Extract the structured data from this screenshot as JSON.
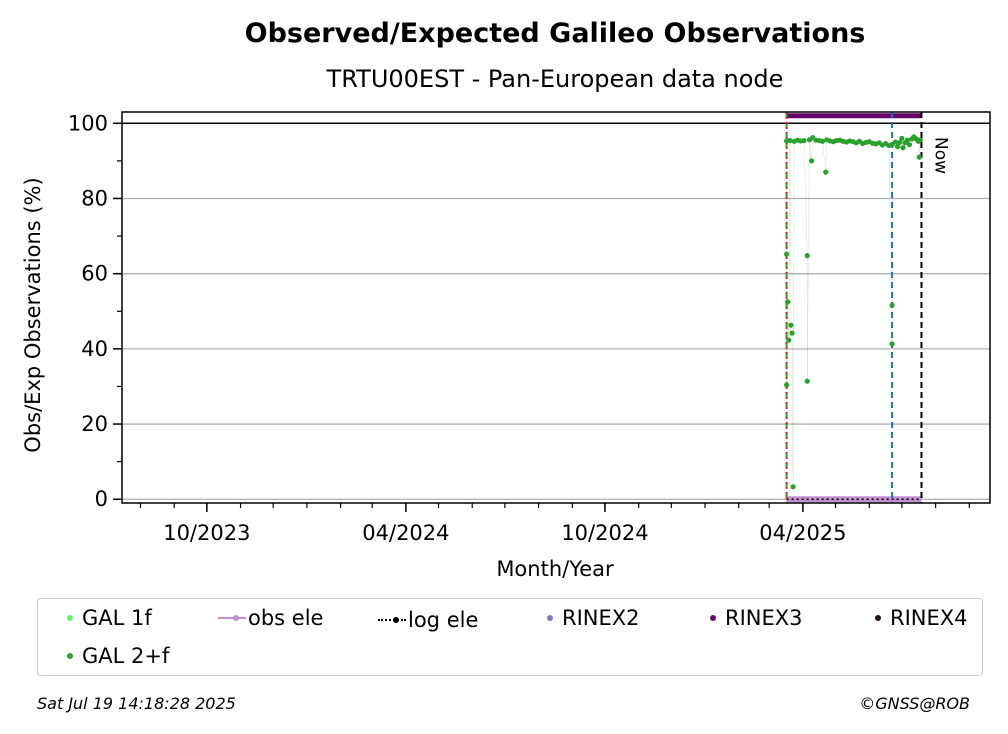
{
  "chart_data": {
    "type": "scatter",
    "title": "Observed/Expected Galileo Observations",
    "subtitle": "TRTU00EST - Pan-European data node",
    "xlabel": "Month/Year",
    "ylabel": "Obs/Exp Observations (%)",
    "xlim": [
      "2023-07-15",
      "2025-09-20"
    ],
    "ylim": [
      -1,
      103
    ],
    "x_tick_labels": [
      "10/2023",
      "04/2024",
      "10/2024",
      "04/2025"
    ],
    "x_ticks": [
      "2023-10-01",
      "2024-04-01",
      "2024-10-01",
      "2025-04-01"
    ],
    "y_ticks": [
      0,
      20,
      40,
      60,
      80,
      100
    ],
    "grid": "horizontal",
    "legend_position": "bottom",
    "reference_line_y": 100,
    "vlines": [
      {
        "x": "2025-03-17",
        "color": "#2ca02c",
        "style": "dashed"
      },
      {
        "x": "2025-03-17",
        "color": "#d62728",
        "style": "dotted"
      },
      {
        "x": "2025-06-22",
        "color": "#1f6fc1",
        "style": "dashed"
      },
      {
        "x": "2025-07-19",
        "color": "#000000",
        "style": "dashed",
        "label": "Now"
      }
    ],
    "series": [
      {
        "name": "GAL 2+f",
        "color": "#2ca02c",
        "points": [
          [
            "2025-03-17",
            95.3
          ],
          [
            "2025-03-17",
            65.2
          ],
          [
            "2025-03-17",
            30.4
          ],
          [
            "2025-03-18",
            52.5
          ],
          [
            "2025-03-19",
            42.3
          ],
          [
            "2025-03-20",
            95.4
          ],
          [
            "2025-03-21",
            46.3
          ],
          [
            "2025-03-22",
            44.2
          ],
          [
            "2025-03-23",
            3.3
          ],
          [
            "2025-03-24",
            95.2
          ],
          [
            "2025-03-27",
            95.5
          ],
          [
            "2025-03-30",
            95.3
          ],
          [
            "2025-04-02",
            95.4
          ],
          [
            "2025-04-05",
            64.8
          ],
          [
            "2025-04-05",
            31.4
          ],
          [
            "2025-04-07",
            95.6
          ],
          [
            "2025-04-09",
            90.0
          ],
          [
            "2025-04-10",
            96.2
          ],
          [
            "2025-04-13",
            95.5
          ],
          [
            "2025-04-16",
            95.4
          ],
          [
            "2025-04-19",
            95.2
          ],
          [
            "2025-04-22",
            87.0
          ],
          [
            "2025-04-23",
            95.6
          ],
          [
            "2025-04-26",
            95.3
          ],
          [
            "2025-04-29",
            95.1
          ],
          [
            "2025-05-02",
            95.4
          ],
          [
            "2025-05-05",
            95.5
          ],
          [
            "2025-05-08",
            95.2
          ],
          [
            "2025-05-11",
            95.0
          ],
          [
            "2025-05-14",
            95.3
          ],
          [
            "2025-05-17",
            95.1
          ],
          [
            "2025-05-20",
            94.8
          ],
          [
            "2025-05-23",
            95.2
          ],
          [
            "2025-05-26",
            94.6
          ],
          [
            "2025-05-29",
            94.9
          ],
          [
            "2025-06-01",
            95.1
          ],
          [
            "2025-06-04",
            94.7
          ],
          [
            "2025-06-07",
            94.5
          ],
          [
            "2025-06-10",
            94.8
          ],
          [
            "2025-06-13",
            94.2
          ],
          [
            "2025-06-16",
            94.6
          ],
          [
            "2025-06-19",
            94.1
          ],
          [
            "2025-06-22",
            51.6
          ],
          [
            "2025-06-22",
            41.3
          ],
          [
            "2025-06-22",
            94.3
          ],
          [
            "2025-06-25",
            95.0
          ],
          [
            "2025-06-27",
            93.8
          ],
          [
            "2025-06-29",
            94.9
          ],
          [
            "2025-07-01",
            96.0
          ],
          [
            "2025-07-02",
            93.5
          ],
          [
            "2025-07-04",
            94.8
          ],
          [
            "2025-07-06",
            95.5
          ],
          [
            "2025-07-08",
            94.3
          ],
          [
            "2025-07-10",
            95.8
          ],
          [
            "2025-07-12",
            96.4
          ],
          [
            "2025-07-14",
            95.9
          ],
          [
            "2025-07-16",
            95.2
          ],
          [
            "2025-07-17",
            91.0
          ],
          [
            "2025-07-18",
            95.6
          ]
        ]
      },
      {
        "name": "RINEX3",
        "color": "#6a006a",
        "range": [
          "2025-03-17",
          "2025-07-19"
        ],
        "y": 102
      },
      {
        "name": "obs ele",
        "color": "#c38fd1",
        "range": [
          "2025-03-17",
          "2025-07-19"
        ],
        "y": 0
      },
      {
        "name": "log ele",
        "color": "#000000",
        "range": [
          "2025-03-17",
          "2025-07-19"
        ],
        "y": 0
      }
    ],
    "legend": [
      {
        "name": "GAL 1f",
        "color": "#66ee66",
        "marker": "dot"
      },
      {
        "name": "obs ele",
        "color": "#c38fd1",
        "marker": "line-dot"
      },
      {
        "name": "log ele",
        "color": "#000000",
        "marker": "dotted-line"
      },
      {
        "name": "RINEX2",
        "color": "#8477bf",
        "marker": "dot"
      },
      {
        "name": "RINEX3",
        "color": "#6a006a",
        "marker": "dot"
      },
      {
        "name": "RINEX4",
        "color": "#1a0a1a",
        "marker": "dot"
      },
      {
        "name": "GAL 2+f",
        "color": "#2ca02c",
        "marker": "dot"
      }
    ]
  },
  "now_label": "Now",
  "footer": {
    "timestamp": "Sat Jul 19 14:18:28 2025",
    "credit": "©GNSS@ROB"
  }
}
